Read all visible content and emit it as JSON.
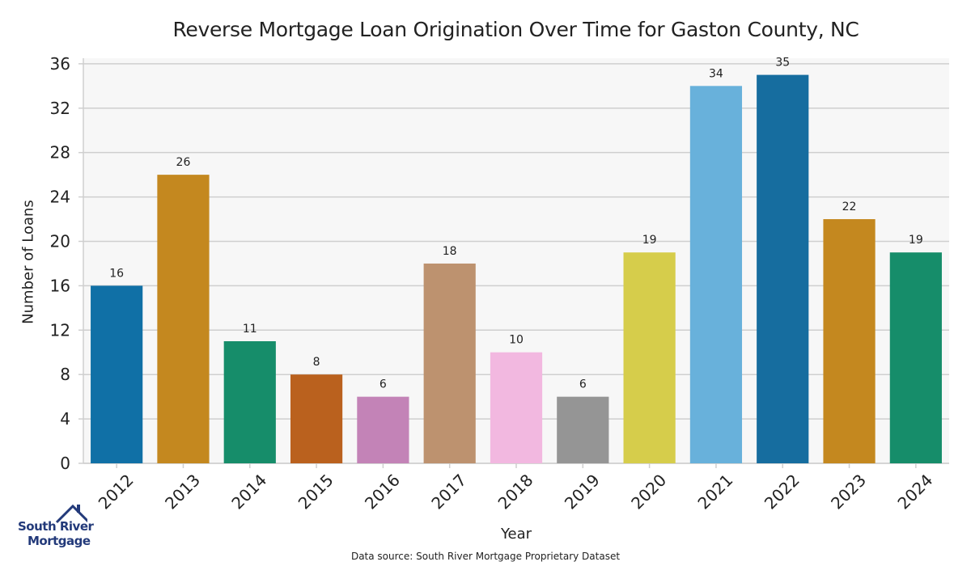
{
  "chart_data": {
    "type": "bar",
    "title": "Reverse Mortgage Loan Origination Over Time for Gaston County, NC",
    "xlabel": "Year",
    "ylabel": "Number of Loans",
    "categories": [
      "2012",
      "2013",
      "2014",
      "2015",
      "2016",
      "2017",
      "2018",
      "2019",
      "2020",
      "2021",
      "2022",
      "2023",
      "2024"
    ],
    "values": [
      16,
      26,
      11,
      8,
      6,
      18,
      10,
      6,
      19,
      34,
      35,
      22,
      19
    ],
    "colors": [
      "#1070a6",
      "#c4881f",
      "#168d6a",
      "#ba611e",
      "#c383b7",
      "#bd926f",
      "#f2b8e0",
      "#959595",
      "#d6cd4b",
      "#68b1db",
      "#166d9f",
      "#c4881f",
      "#168d6a"
    ],
    "yticks": [
      0,
      4,
      8,
      12,
      16,
      20,
      24,
      28,
      32,
      36
    ],
    "ylim": [
      0,
      36.5
    ],
    "grid": true,
    "legend": "none"
  },
  "footer": {
    "source": "Data source: South River Mortgage Proprietary Dataset"
  },
  "logo": {
    "line1": "South River",
    "line2": "Mortgage",
    "color": "#233a7a"
  }
}
